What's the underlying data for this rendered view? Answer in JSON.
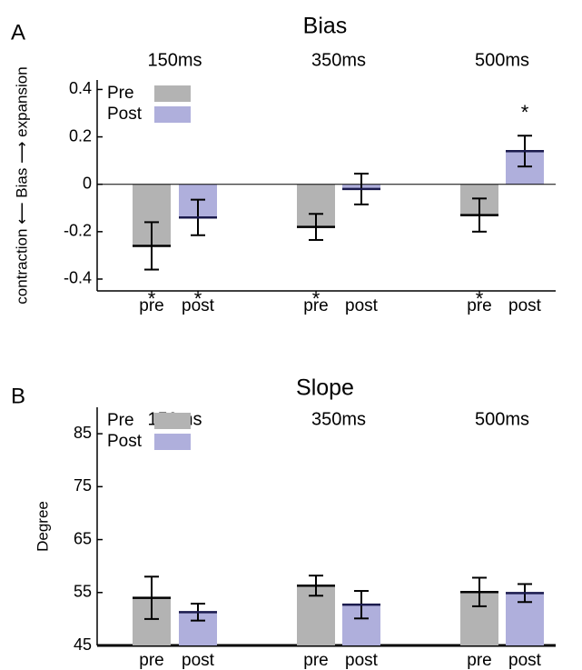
{
  "chart_data": [
    {
      "type": "bar",
      "panel": "A",
      "title": "Bias",
      "ylabel": "contraction ⟵ Bias ⟶ expansion",
      "groups": [
        "150ms",
        "350ms",
        "500ms"
      ],
      "series": [
        {
          "name": "Pre",
          "tick_label": "pre",
          "color": "#b3b3b3",
          "mean_color": "#000000",
          "values": [
            -0.26,
            -0.18,
            -0.13
          ],
          "errors": [
            0.1,
            0.055,
            0.07
          ],
          "significant": [
            true,
            true,
            true
          ]
        },
        {
          "name": "Post",
          "tick_label": "post",
          "color": "#afafdc",
          "mean_color": "#1a1a4d",
          "values": [
            -0.14,
            -0.02,
            0.14
          ],
          "errors": [
            0.075,
            0.065,
            0.065
          ],
          "significant": [
            true,
            false,
            true
          ]
        }
      ],
      "sig_marker": "*",
      "zero_line": true,
      "ylim": [
        -0.45,
        0.44
      ],
      "yticks": [
        -0.4,
        -0.2,
        0,
        0.2,
        0.4
      ]
    },
    {
      "type": "bar",
      "panel": "B",
      "title": "Slope",
      "ylabel": "Degree",
      "groups": [
        "150ms",
        "350ms",
        "500ms"
      ],
      "series": [
        {
          "name": "Pre",
          "tick_label": "pre",
          "color": "#b3b3b3",
          "mean_color": "#000000",
          "values": [
            54,
            56.3,
            55.1
          ],
          "errors": [
            4,
            1.9,
            2.7
          ]
        },
        {
          "name": "Post",
          "tick_label": "post",
          "color": "#afafdc",
          "mean_color": "#1a1a4d",
          "values": [
            51.3,
            52.7,
            54.9
          ],
          "errors": [
            1.6,
            2.6,
            1.7
          ]
        }
      ],
      "zero_line": false,
      "ylim": [
        45,
        90
      ],
      "yticks": [
        45,
        55,
        65,
        75,
        85
      ]
    }
  ]
}
